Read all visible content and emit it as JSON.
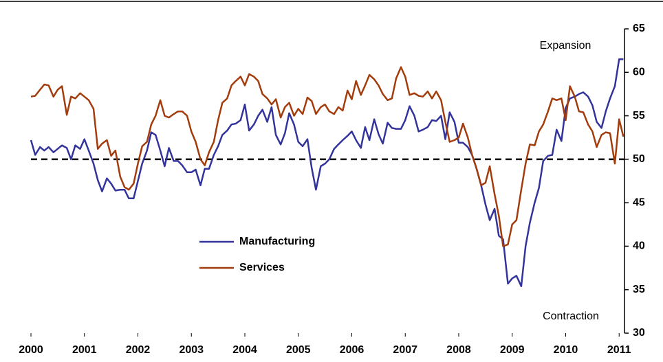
{
  "chart_data": {
    "type": "line",
    "x": [
      2000,
      2000.08,
      2000.17,
      2000.25,
      2000.33,
      2000.42,
      2000.5,
      2000.58,
      2000.67,
      2000.75,
      2000.83,
      2000.92,
      2001,
      2001.08,
      2001.17,
      2001.25,
      2001.33,
      2001.42,
      2001.5,
      2001.58,
      2001.67,
      2001.75,
      2001.83,
      2001.92,
      2002,
      2002.08,
      2002.17,
      2002.25,
      2002.33,
      2002.42,
      2002.5,
      2002.58,
      2002.67,
      2002.75,
      2002.83,
      2002.92,
      2003,
      2003.08,
      2003.17,
      2003.25,
      2003.33,
      2003.42,
      2003.5,
      2003.58,
      2003.67,
      2003.75,
      2003.83,
      2003.92,
      2004,
      2004.08,
      2004.17,
      2004.25,
      2004.33,
      2004.42,
      2004.5,
      2004.58,
      2004.67,
      2004.75,
      2004.83,
      2004.92,
      2005,
      2005.08,
      2005.17,
      2005.25,
      2005.33,
      2005.42,
      2005.5,
      2005.58,
      2005.67,
      2005.75,
      2005.83,
      2005.92,
      2006,
      2006.08,
      2006.17,
      2006.25,
      2006.33,
      2006.42,
      2006.5,
      2006.58,
      2006.67,
      2006.75,
      2006.83,
      2006.92,
      2007,
      2007.08,
      2007.17,
      2007.25,
      2007.33,
      2007.42,
      2007.5,
      2007.58,
      2007.67,
      2007.75,
      2007.83,
      2007.92,
      2008,
      2008.08,
      2008.17,
      2008.25,
      2008.33,
      2008.42,
      2008.5,
      2008.58,
      2008.67,
      2008.75,
      2008.83,
      2008.92,
      2009,
      2009.08,
      2009.17,
      2009.25,
      2009.33,
      2009.42,
      2009.5,
      2009.58,
      2009.67,
      2009.75,
      2009.83,
      2009.92,
      2010,
      2010.08,
      2010.17,
      2010.25,
      2010.33,
      2010.42,
      2010.5,
      2010.58,
      2010.67,
      2010.75,
      2010.83,
      2010.92,
      2011,
      2011.08
    ],
    "series": [
      {
        "name": "Manufacturing",
        "color": "#33339c",
        "values": [
          52.2,
          50.5,
          51.4,
          51.0,
          51.4,
          50.8,
          51.2,
          51.6,
          51.3,
          50.0,
          51.6,
          51.2,
          52.3,
          51.0,
          49.5,
          47.6,
          46.3,
          47.8,
          47.2,
          46.4,
          46.5,
          46.5,
          45.5,
          45.5,
          47.5,
          49.5,
          51.0,
          53.1,
          52.8,
          51.0,
          49.2,
          51.3,
          49.8,
          49.8,
          49.3,
          48.5,
          48.5,
          48.8,
          47.0,
          48.9,
          48.9,
          50.5,
          51.5,
          52.8,
          53.3,
          54.0,
          54.1,
          54.5,
          56.3,
          53.3,
          54.0,
          55.0,
          55.7,
          54.3,
          56.0,
          52.8,
          51.7,
          53.0,
          55.3,
          54.0,
          52.0,
          51.5,
          52.3,
          49.0,
          46.5,
          49.2,
          49.5,
          50.0,
          51.2,
          51.7,
          52.2,
          52.7,
          53.2,
          52.2,
          51.3,
          53.7,
          52.2,
          54.6,
          52.9,
          51.8,
          54.2,
          53.6,
          53.5,
          53.5,
          54.5,
          56.1,
          55.0,
          53.2,
          53.4,
          53.7,
          54.5,
          54.4,
          55.0,
          52.3,
          55.4,
          54.3,
          51.9,
          51.9,
          51.4,
          50.5,
          49.0,
          47.0,
          44.8,
          43.0,
          44.3,
          41.2,
          40.8,
          35.7,
          36.3,
          36.6,
          35.4,
          40.0,
          42.7,
          45.0,
          46.7,
          49.8,
          50.4,
          50.5,
          53.4,
          52.1,
          55.9,
          57.0,
          57.2,
          57.5,
          57.7,
          57.2,
          56.2,
          54.3,
          53.6,
          55.5,
          57.0,
          58.4,
          61.5,
          61.5
        ]
      },
      {
        "name": "Services",
        "color": "#a33c0c",
        "values": [
          57.2,
          57.3,
          58.0,
          58.6,
          58.5,
          57.2,
          58.0,
          58.4,
          55.1,
          57.2,
          57.0,
          57.6,
          57.2,
          56.8,
          55.8,
          51.2,
          51.8,
          52.2,
          50.4,
          51.0,
          48.0,
          46.8,
          46.5,
          47.2,
          49.5,
          51.5,
          52.0,
          54.0,
          55.0,
          56.8,
          55.0,
          54.8,
          55.2,
          55.5,
          55.5,
          55.0,
          53.2,
          52.0,
          50.0,
          49.3,
          50.8,
          52.0,
          54.5,
          56.5,
          57.0,
          58.5,
          59.0,
          59.5,
          58.5,
          59.8,
          59.5,
          59.0,
          57.5,
          57.0,
          56.3,
          56.9,
          54.8,
          56.0,
          56.5,
          55.0,
          55.8,
          55.2,
          57.1,
          56.7,
          55.2,
          56.0,
          56.3,
          55.5,
          55.2,
          56.0,
          55.6,
          57.9,
          56.9,
          59.0,
          57.4,
          58.5,
          59.7,
          59.2,
          58.5,
          57.5,
          56.8,
          57.0,
          59.3,
          60.6,
          59.5,
          57.4,
          57.6,
          57.3,
          57.2,
          57.8,
          57.0,
          57.8,
          56.8,
          54.3,
          52.0,
          52.2,
          52.5,
          54.1,
          52.5,
          50.5,
          49.0,
          47.0,
          47.3,
          49.2,
          46.0,
          43.5,
          40.0,
          40.2,
          42.5,
          43.0,
          46.5,
          49.5,
          51.7,
          51.6,
          53.2,
          54.0,
          55.5,
          57.0,
          56.8,
          57.0,
          54.5,
          58.4,
          57.2,
          55.5,
          55.4,
          54.0,
          53.2,
          51.4,
          52.8,
          53.1,
          53.0,
          49.5,
          54.6,
          52.6
        ]
      }
    ],
    "xlim": [
      2000,
      2011.1
    ],
    "xticks": [
      2000,
      2001,
      2002,
      2003,
      2004,
      2005,
      2006,
      2007,
      2008,
      2009,
      2010,
      2011
    ],
    "ylim": [
      30,
      65
    ],
    "yticks": [
      30,
      35,
      40,
      45,
      50,
      55,
      60,
      65
    ],
    "reference_line": 50,
    "annotations": [
      "Expansion",
      "Contraction"
    ]
  }
}
